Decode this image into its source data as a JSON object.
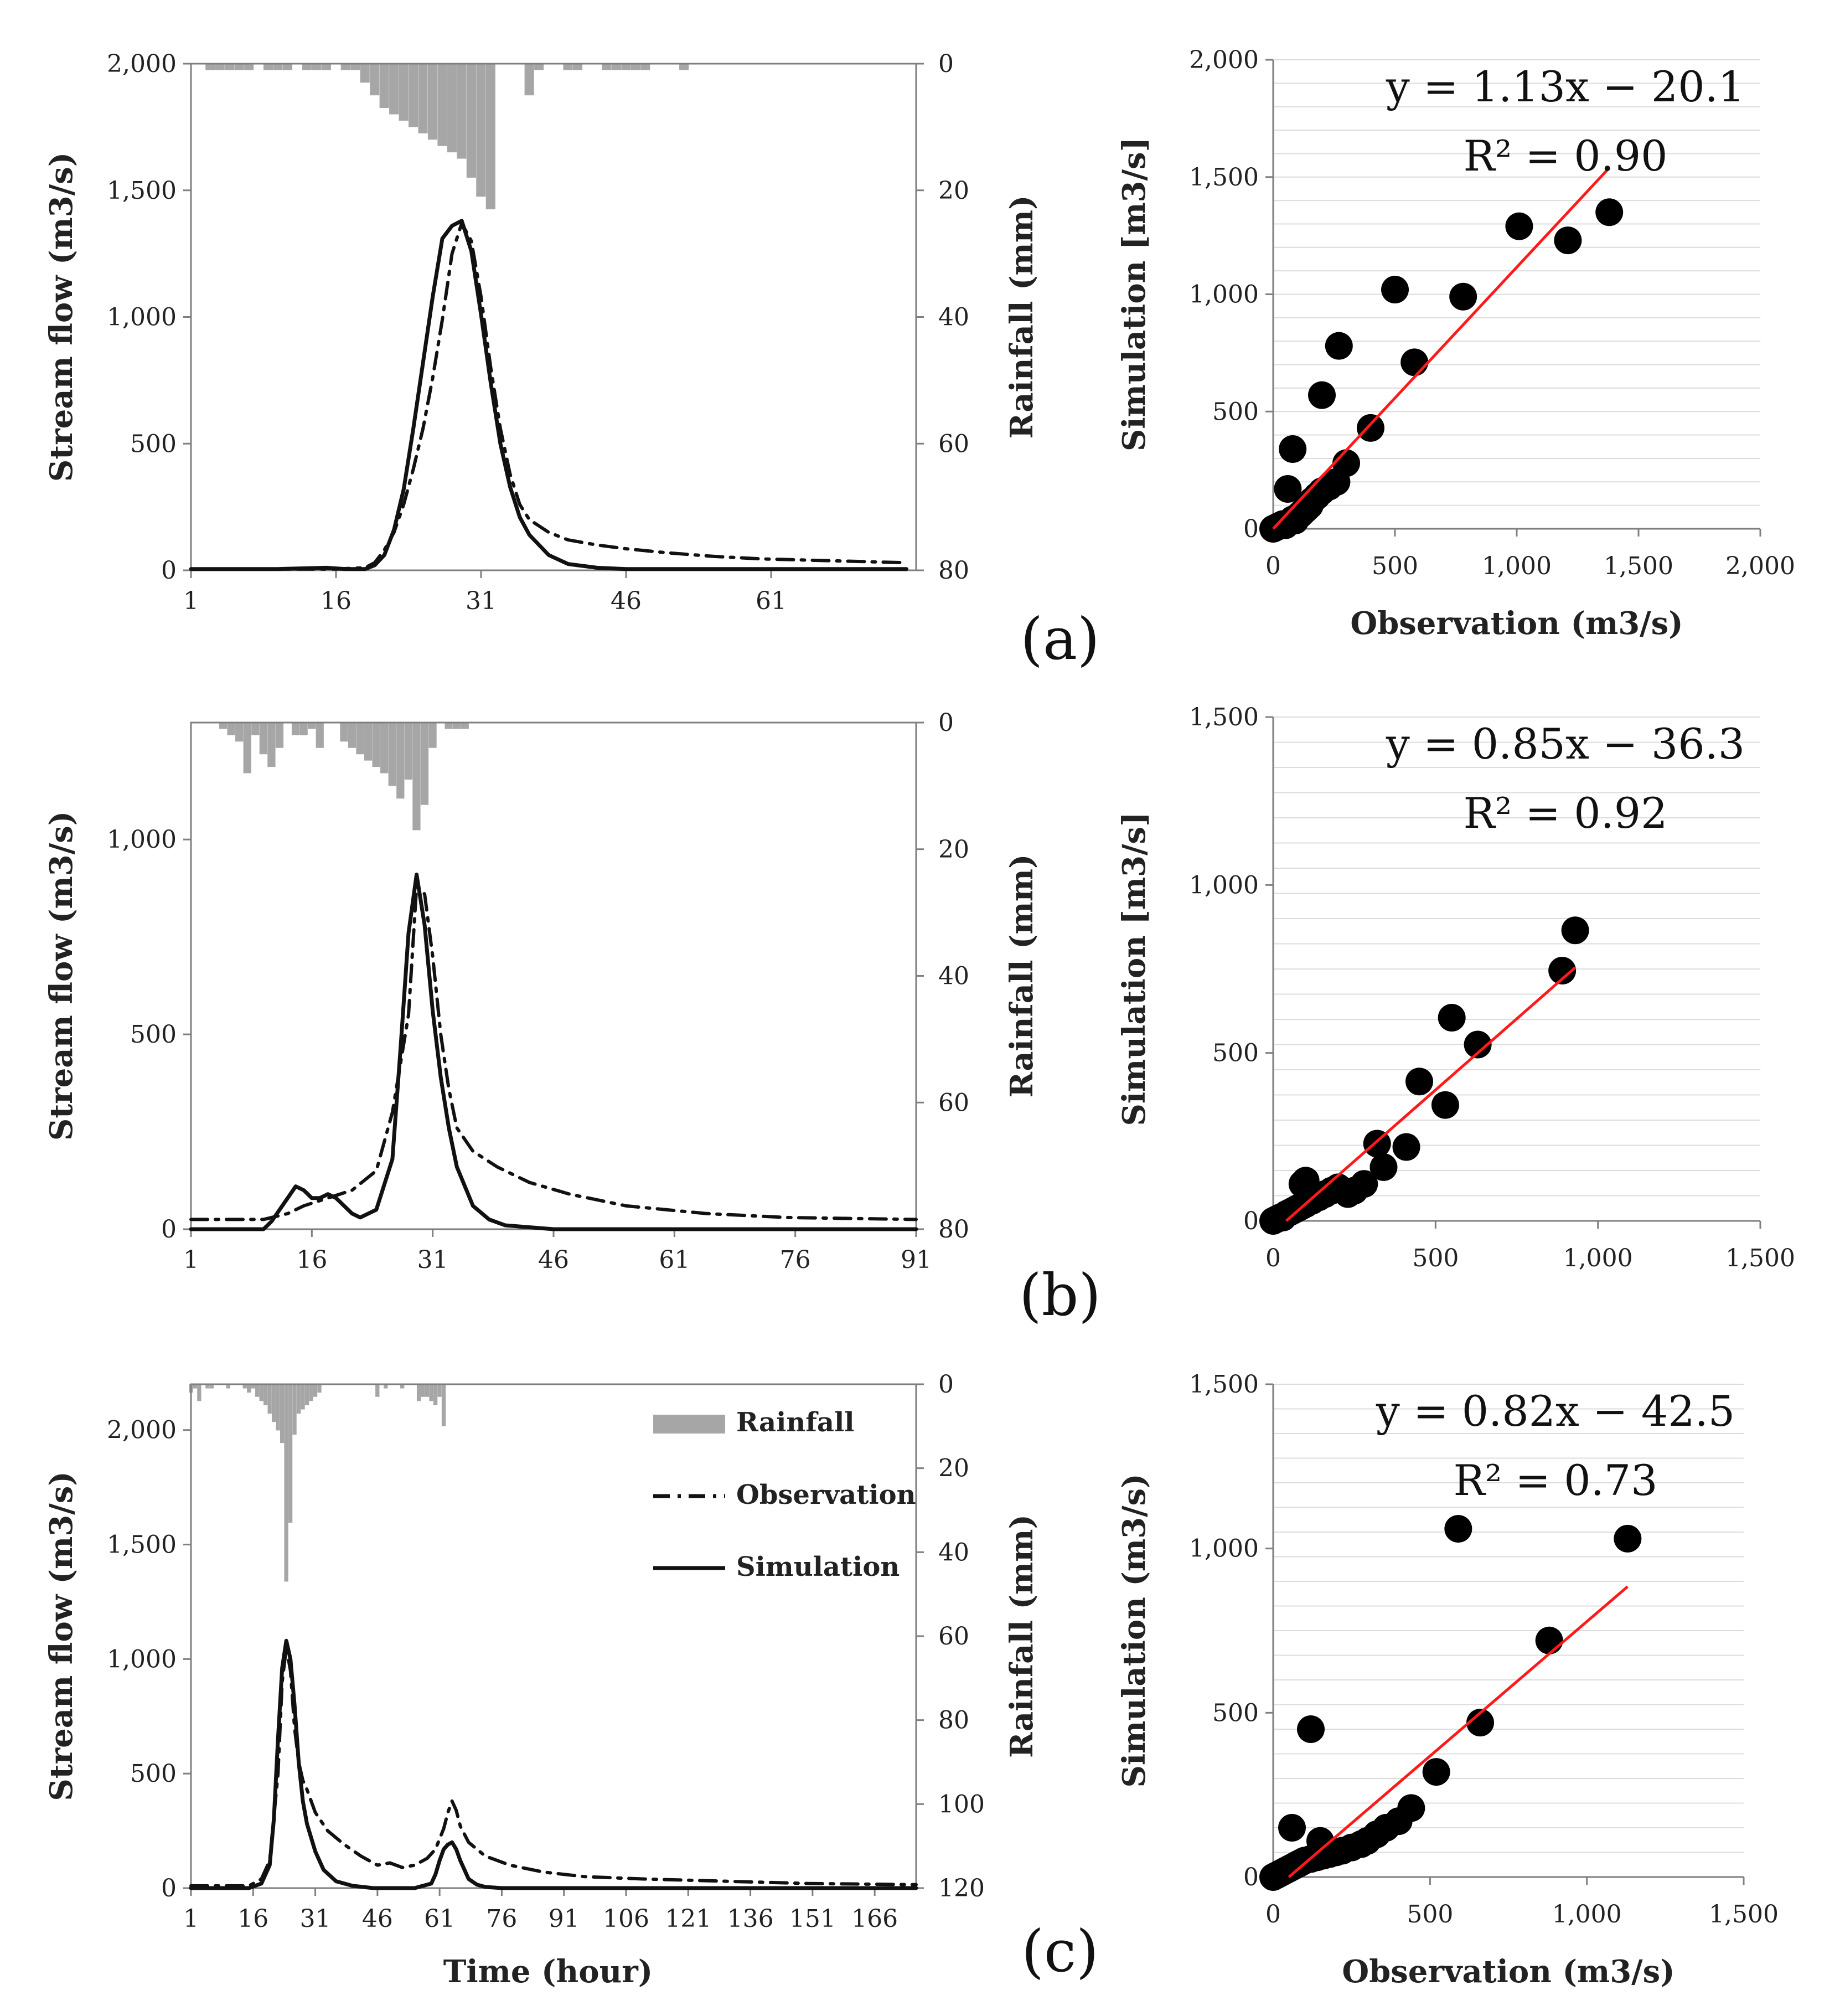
{
  "chart_data": [
    {
      "id": "a-hydro",
      "type": "line",
      "xlabel": "",
      "ylabel": "Stream flow (m3/s)",
      "y2label": "Rainfall (mm)",
      "xlim": [
        1,
        76
      ],
      "ylim": [
        0,
        2000
      ],
      "y2lim": [
        0,
        80
      ],
      "x_ticks": [
        1,
        16,
        31,
        46,
        61
      ],
      "y_ticks": [
        0,
        500,
        1000,
        1500,
        2000
      ],
      "y_tick_labels": [
        "0",
        "500",
        "1,000",
        "1,500",
        "2,000"
      ],
      "y2_ticks": [
        0,
        20,
        40,
        60,
        80
      ],
      "y2_tick_labels": [
        "0",
        "20",
        "40",
        "60",
        "80"
      ],
      "rainfall": {
        "x": [
          3,
          4,
          5,
          6,
          7,
          9,
          10,
          11,
          13,
          14,
          15,
          17,
          18,
          19,
          20,
          21,
          22,
          23,
          24,
          25,
          26,
          27,
          28,
          29,
          30,
          31,
          32,
          36,
          37,
          40,
          41,
          44,
          45,
          46,
          47,
          48,
          52
        ],
        "values": [
          1,
          1,
          1,
          1,
          1,
          1,
          1,
          1,
          1,
          1,
          1,
          1,
          1,
          3,
          5,
          7,
          8,
          9,
          10,
          11,
          12,
          13,
          14,
          15,
          18,
          21,
          23,
          5,
          1,
          1,
          1,
          1,
          1,
          1,
          1,
          1,
          1
        ]
      },
      "series": [
        {
          "name": "Observation",
          "style": "dashdot",
          "x": [
            1,
            10,
            16,
            19,
            20,
            21,
            22,
            23,
            24,
            25,
            26,
            27,
            28,
            29,
            30,
            31,
            32,
            33,
            34,
            35,
            36,
            38,
            40,
            43,
            46,
            50,
            55,
            60,
            65,
            70,
            75
          ],
          "y": [
            5,
            5,
            5,
            10,
            30,
            80,
            150,
            260,
            400,
            560,
            760,
            990,
            1250,
            1370,
            1300,
            1080,
            800,
            560,
            380,
            260,
            200,
            150,
            120,
            100,
            85,
            70,
            55,
            45,
            40,
            35,
            30
          ]
        },
        {
          "name": "Simulation",
          "style": "solid",
          "x": [
            1,
            10,
            15,
            17,
            19,
            20,
            21,
            22,
            23,
            24,
            25,
            26,
            27,
            28,
            29,
            30,
            31,
            32,
            33,
            34,
            35,
            36,
            38,
            40,
            43,
            46,
            55,
            75
          ],
          "y": [
            5,
            5,
            10,
            5,
            5,
            20,
            60,
            160,
            320,
            560,
            820,
            1080,
            1310,
            1360,
            1380,
            1260,
            1010,
            740,
            500,
            330,
            210,
            140,
            60,
            25,
            10,
            5,
            5,
            5
          ]
        }
      ],
      "points": []
    },
    {
      "id": "a-scatter",
      "type": "scatter",
      "xlabel": "Observation (m3/s)",
      "ylabel": "Simulation [m3/s]",
      "xlim": [
        0,
        2000
      ],
      "ylim": [
        0,
        2000
      ],
      "x_ticks": [
        0,
        500,
        1000,
        1500,
        2000
      ],
      "x_tick_labels": [
        "0",
        "500",
        "1,000",
        "1,500",
        "2,000"
      ],
      "y_ticks": [
        0,
        500,
        1000,
        1500,
        2000
      ],
      "y_tick_labels": [
        "0",
        "500",
        "1,000",
        "1,500",
        "2,000"
      ],
      "points": {
        "x": [
          0,
          10,
          20,
          30,
          40,
          50,
          60,
          70,
          80,
          90,
          100,
          110,
          120,
          130,
          140,
          150,
          160,
          180,
          200,
          230,
          260,
          300,
          400,
          500,
          580,
          60,
          80,
          200,
          270,
          780,
          1010,
          1210,
          1380
        ],
        "y": [
          0,
          5,
          10,
          15,
          20,
          15,
          25,
          30,
          40,
          35,
          50,
          60,
          70,
          80,
          90,
          100,
          120,
          140,
          160,
          180,
          200,
          280,
          430,
          1020,
          710,
          170,
          340,
          570,
          780,
          990,
          1290,
          1230,
          1350
        ]
      },
      "trendline": {
        "x": [
          0,
          1380
        ],
        "y": [
          -20.1,
          1539.3
        ]
      },
      "equation": "y = 1.13x − 20.1",
      "r2": "R² = 0.90",
      "panel_label": "(a)"
    },
    {
      "id": "b-hydro",
      "type": "line",
      "xlabel": "",
      "ylabel": "Stream flow (m3/s)",
      "y2label": "Rainfall (mm)",
      "xlim": [
        1,
        91
      ],
      "ylim": [
        0,
        1300
      ],
      "y2lim": [
        0,
        80
      ],
      "x_ticks": [
        1,
        16,
        31,
        46,
        61,
        76,
        91
      ],
      "y_ticks": [
        0,
        500,
        1000
      ],
      "y_tick_labels": [
        "0",
        "500",
        "1,000"
      ],
      "y2_ticks": [
        0,
        20,
        40,
        60,
        80
      ],
      "y2_tick_labels": [
        "0",
        "20",
        "40",
        "60",
        "80"
      ],
      "rainfall": {
        "x": [
          5,
          6,
          7,
          8,
          9,
          10,
          11,
          12,
          14,
          15,
          16,
          17,
          20,
          21,
          22,
          23,
          24,
          25,
          26,
          27,
          28,
          29,
          30,
          31,
          33,
          34,
          35
        ],
        "values": [
          1,
          2,
          3,
          8,
          2,
          5,
          7,
          4,
          2,
          2,
          1,
          4,
          3,
          4,
          5,
          6,
          7,
          8,
          10,
          12,
          9,
          17,
          13,
          4,
          1,
          1,
          1
        ]
      },
      "series": [
        {
          "name": "Observation",
          "style": "dashdot",
          "x": [
            1,
            5,
            10,
            13,
            15,
            18,
            21,
            24,
            26,
            28,
            29,
            30,
            31,
            32,
            33,
            34,
            36,
            39,
            43,
            48,
            55,
            65,
            75,
            91
          ],
          "y": [
            25,
            25,
            25,
            40,
            60,
            80,
            100,
            150,
            300,
            550,
            880,
            860,
            700,
            500,
            360,
            260,
            200,
            160,
            120,
            90,
            60,
            40,
            30,
            25
          ]
        },
        {
          "name": "Simulation",
          "style": "solid",
          "x": [
            1,
            10,
            11,
            12,
            13,
            14,
            15,
            16,
            17,
            18,
            19,
            20,
            21,
            22,
            24,
            26,
            27,
            28,
            29,
            30,
            31,
            32,
            33,
            34,
            36,
            38,
            40,
            43,
            46,
            91
          ],
          "y": [
            0,
            0,
            20,
            50,
            80,
            110,
            100,
            80,
            80,
            90,
            80,
            60,
            40,
            30,
            50,
            180,
            460,
            760,
            910,
            780,
            560,
            390,
            260,
            160,
            60,
            25,
            10,
            5,
            0,
            0
          ]
        }
      ],
      "points": []
    },
    {
      "id": "b-scatter",
      "type": "scatter",
      "xlabel": "",
      "ylabel": "Simulation [m3/s]",
      "xlim": [
        0,
        1500
      ],
      "ylim": [
        0,
        1500
      ],
      "x_ticks": [
        0,
        500,
        1000,
        1500
      ],
      "x_tick_labels": [
        "0",
        "500",
        "1,000",
        "1,500"
      ],
      "y_ticks": [
        0,
        500,
        1000,
        1500
      ],
      "y_tick_labels": [
        "0",
        "500",
        "1,000",
        "1,500"
      ],
      "points": {
        "x": [
          0,
          10,
          20,
          30,
          40,
          50,
          60,
          70,
          80,
          90,
          100,
          120,
          140,
          160,
          180,
          200,
          230,
          250,
          280,
          320,
          340,
          410,
          450,
          530,
          550,
          630,
          890,
          930,
          90,
          100
        ],
        "y": [
          0,
          5,
          10,
          10,
          20,
          25,
          30,
          35,
          40,
          45,
          50,
          60,
          70,
          80,
          90,
          100,
          80,
          90,
          110,
          230,
          160,
          220,
          415,
          345,
          605,
          525,
          745,
          865,
          110,
          120
        ]
      },
      "trendline": {
        "x": [
          40,
          930
        ],
        "y": [
          -2.3,
          754.2
        ]
      },
      "equation": "y = 0.85x − 36.3",
      "r2": "R² = 0.92",
      "panel_label": "(b)"
    },
    {
      "id": "c-hydro",
      "type": "line",
      "xlabel": "Time (hour)",
      "ylabel": "Stream flow (m3/s)",
      "y2label": "Rainfall (mm)",
      "xlim": [
        1,
        176
      ],
      "ylim": [
        0,
        2200
      ],
      "y2lim": [
        0,
        120
      ],
      "x_ticks": [
        1,
        16,
        31,
        46,
        61,
        76,
        91,
        106,
        121,
        136,
        151,
        166
      ],
      "y_ticks": [
        0,
        500,
        1000,
        1500,
        2000
      ],
      "y_tick_labels": [
        "0",
        "500",
        "1,000",
        "1,500",
        "2,000"
      ],
      "y2_ticks": [
        0,
        20,
        40,
        60,
        80,
        100,
        120
      ],
      "y2_tick_labels": [
        "0",
        "20",
        "40",
        "60",
        "80",
        "100",
        "120"
      ],
      "rainfall": {
        "x": [
          1,
          2,
          3,
          5,
          6,
          10,
          14,
          15,
          16,
          17,
          18,
          19,
          20,
          21,
          22,
          23,
          24,
          25,
          26,
          27,
          28,
          29,
          30,
          31,
          32,
          46,
          48,
          52,
          56,
          57,
          58,
          59,
          60,
          61,
          62
        ],
        "values": [
          2,
          1,
          4,
          1,
          1,
          1,
          1,
          2,
          1,
          3,
          4,
          5,
          7,
          9,
          11,
          14,
          47,
          33,
          12,
          7,
          6,
          5,
          4,
          3,
          2,
          3,
          1,
          1,
          4,
          3,
          3,
          4,
          5,
          3,
          10
        ]
      },
      "series": [
        {
          "name": "Observation",
          "style": "dashdot",
          "x": [
            1,
            10,
            15,
            18,
            20,
            22,
            23,
            24,
            25,
            26,
            27,
            28,
            29,
            31,
            34,
            38,
            42,
            46,
            49,
            52,
            55,
            58,
            60,
            62,
            63,
            64,
            65,
            66,
            68,
            72,
            78,
            86,
            96,
            110,
            130,
            150,
            176
          ],
          "y": [
            10,
            10,
            10,
            40,
            120,
            500,
            900,
            1050,
            950,
            700,
            550,
            470,
            430,
            330,
            250,
            190,
            140,
            100,
            110,
            90,
            100,
            130,
            170,
            260,
            330,
            380,
            340,
            270,
            200,
            140,
            100,
            70,
            50,
            40,
            30,
            20,
            15
          ]
        },
        {
          "name": "Simulation",
          "style": "solid",
          "x": [
            1,
            15,
            18,
            20,
            21,
            22,
            23,
            24,
            25,
            26,
            27,
            28,
            29,
            31,
            33,
            36,
            40,
            45,
            55,
            59,
            60,
            61,
            62,
            63,
            64,
            65,
            66,
            67,
            68,
            70,
            72,
            76,
            176
          ],
          "y": [
            0,
            0,
            20,
            100,
            300,
            650,
            960,
            1080,
            1000,
            800,
            550,
            380,
            280,
            160,
            80,
            30,
            10,
            0,
            0,
            20,
            60,
            120,
            170,
            190,
            200,
            170,
            120,
            80,
            40,
            15,
            5,
            0,
            0
          ]
        }
      ],
      "points": [],
      "legend": [
        "Rainfall",
        "Observation",
        "Simulation"
      ]
    },
    {
      "id": "c-scatter",
      "type": "scatter",
      "xlabel": "Observation (m3/s)",
      "ylabel": "Simulation (m3/s)",
      "xlim": [
        0,
        1500
      ],
      "ylim": [
        0,
        1500
      ],
      "x_ticks": [
        0,
        500,
        1000,
        1500
      ],
      "x_tick_labels": [
        "0",
        "500",
        "1,000",
        "1,500"
      ],
      "y_ticks": [
        0,
        500,
        1000,
        1500
      ],
      "y_tick_labels": [
        "0",
        "500",
        "1,000",
        "1,500"
      ],
      "points": {
        "x": [
          0,
          10,
          20,
          30,
          40,
          50,
          60,
          70,
          80,
          90,
          100,
          120,
          140,
          160,
          180,
          200,
          220,
          250,
          280,
          300,
          330,
          360,
          400,
          440,
          520,
          590,
          660,
          880,
          1130,
          120,
          60,
          150
        ],
        "y": [
          0,
          5,
          10,
          15,
          20,
          25,
          30,
          35,
          40,
          45,
          50,
          55,
          60,
          65,
          70,
          75,
          80,
          90,
          100,
          110,
          130,
          150,
          170,
          210,
          320,
          1060,
          470,
          720,
          1030,
          450,
          150,
          110
        ]
      },
      "trendline": {
        "x": [
          50,
          1130
        ],
        "y": [
          -1.5,
          884.1
        ]
      },
      "equation": "y = 0.82x − 42.5",
      "r2": "R² = 0.73",
      "panel_label": "(c)"
    }
  ],
  "colors": {
    "rain": "#a6a6a6",
    "line": "#111111",
    "point": "#000000",
    "trend": "#ff1a1a",
    "grid": "#dcdcdc",
    "axis": "#7f7f7f"
  }
}
